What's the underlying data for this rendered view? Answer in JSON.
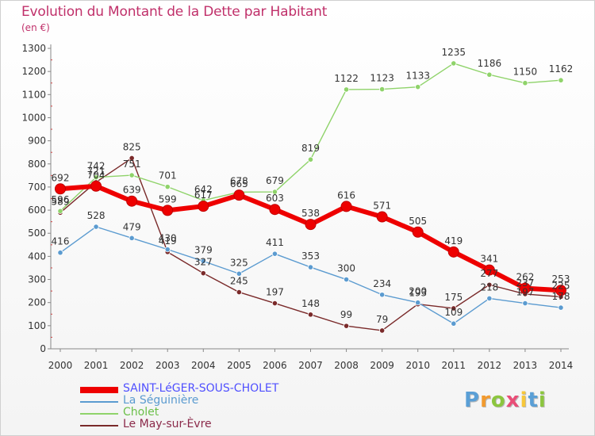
{
  "title": "Evolution du Montant de la Dette par Habitant",
  "subtitle": "(en €)",
  "logo": {
    "text": "Proxiti",
    "letters": [
      {
        "ch": "P",
        "color": "#5a9fd6"
      },
      {
        "ch": "r",
        "color": "#f29a2e"
      },
      {
        "ch": "o",
        "color": "#8cc63f"
      },
      {
        "ch": "x",
        "color": "#e94e77"
      },
      {
        "ch": "i",
        "color": "#f7c73a"
      },
      {
        "ch": "t",
        "color": "#5a9fd6"
      },
      {
        "ch": "i",
        "color": "#8cc63f"
      }
    ]
  },
  "chart_data": {
    "type": "line",
    "x": [
      2000,
      2001,
      2002,
      2003,
      2004,
      2005,
      2006,
      2007,
      2008,
      2009,
      2010,
      2011,
      2012,
      2013,
      2014
    ],
    "ylim": [
      0,
      1300
    ],
    "yticks": [
      0,
      100,
      200,
      300,
      400,
      500,
      600,
      700,
      800,
      900,
      1000,
      1100,
      1200,
      1300
    ],
    "grid": false,
    "legend_position": "bottom-left",
    "series": [
      {
        "name": "SAINT-LéGER-SOUS-CHOLET",
        "color": "#ee0000",
        "label_color": "#5050ff",
        "width": 6,
        "values": [
          692,
          704,
          639,
          599,
          617,
          665,
          603,
          538,
          616,
          571,
          505,
          419,
          341,
          262,
          253
        ]
      },
      {
        "name": "La Séguinière",
        "color": "#5b9bd0",
        "label_color": "#5b9bd0",
        "width": 1.4,
        "values": [
          416,
          528,
          479,
          430,
          379,
          325,
          411,
          353,
          300,
          234,
          200,
          109,
          218,
          197,
          178
        ]
      },
      {
        "name": "Cholet",
        "color": "#8fd36a",
        "label_color": "#6cc04a",
        "width": 1.4,
        "values": [
          596,
          742,
          751,
          701,
          642,
          678,
          679,
          819,
          1122,
          1123,
          1133,
          1235,
          1186,
          1150,
          1162
        ]
      },
      {
        "name": "Le May-sur-Èvre",
        "color": "#7a2a2a",
        "label_color": "#8b2a4a",
        "width": 1.4,
        "values": [
          589,
          721,
          825,
          419,
          327,
          245,
          197,
          148,
          99,
          79,
          193,
          175,
          277,
          237,
          225
        ]
      }
    ]
  }
}
